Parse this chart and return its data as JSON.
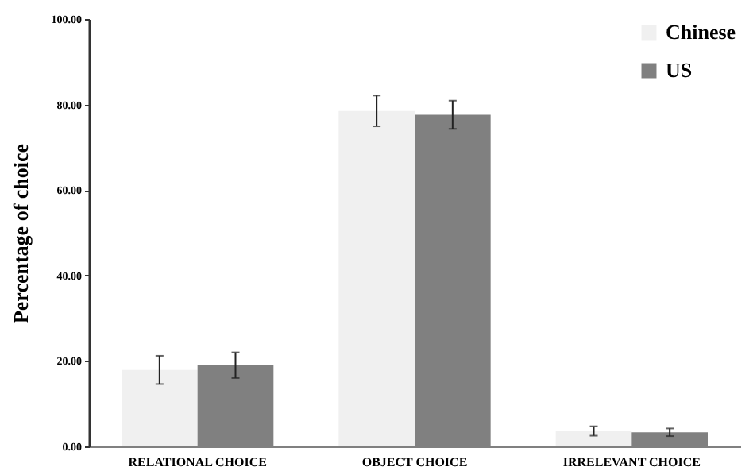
{
  "chart_data": {
    "type": "bar",
    "ylabel": "Percentage of choice",
    "categories": [
      "RELATIONAL CHOICE",
      "OBJECT CHOICE",
      "IRRELEVANT CHOICE"
    ],
    "series": [
      {
        "name": "Chinese",
        "color": "#f0f0f0",
        "values": [
          17.9,
          78.5,
          3.6
        ],
        "errors": [
          3.3,
          3.6,
          1.1
        ]
      },
      {
        "name": "US",
        "color": "#808080",
        "values": [
          19.0,
          77.6,
          3.3
        ],
        "errors": [
          3.0,
          3.3,
          0.9
        ]
      }
    ],
    "ylim": [
      0,
      100
    ],
    "yticks": [
      {
        "value": 0,
        "label": "0.00"
      },
      {
        "value": 20,
        "label": "20.00"
      },
      {
        "value": 40,
        "label": "40.00"
      },
      {
        "value": 60,
        "label": "60.00"
      },
      {
        "value": 80,
        "label": "80.00"
      },
      {
        "value": 100,
        "label": "100.00"
      }
    ],
    "grid": false,
    "legend": "top right"
  }
}
